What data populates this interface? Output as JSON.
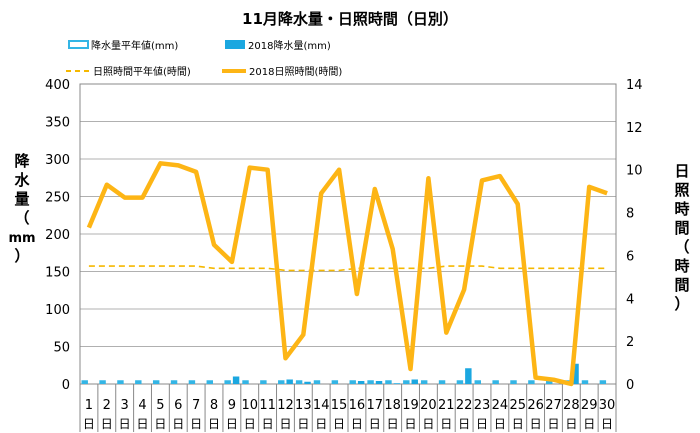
{
  "chart_data": {
    "type": "bar+line",
    "title": "11月降水量・日照時間（日別）",
    "y_left_label": [
      "降",
      "水",
      "量",
      "（",
      "mm",
      "）"
    ],
    "y_right_label": [
      "日",
      "照",
      "時",
      "間",
      "（",
      "時",
      "間",
      "）"
    ],
    "y_left_range": [
      0,
      400
    ],
    "y_left_ticks": [
      "0",
      "50",
      "100",
      "150",
      "200",
      "250",
      "300",
      "350",
      "400"
    ],
    "y_right_range": [
      0,
      14
    ],
    "y_right_ticks": [
      "0",
      "2",
      "4",
      "6",
      "8",
      "10",
      "12",
      "14"
    ],
    "grid": true,
    "legend_position": "top",
    "categories": [
      "1",
      "2",
      "3",
      "4",
      "5",
      "6",
      "7",
      "8",
      "9",
      "10",
      "11",
      "12",
      "13",
      "14",
      "15",
      "16",
      "17",
      "18",
      "19",
      "20",
      "21",
      "22",
      "23",
      "24",
      "25",
      "26",
      "27",
      "28",
      "29",
      "30"
    ],
    "day_suffix": "日",
    "legend": {
      "rain_normal": "降水量平年値(mm)",
      "rain_2018": "2018降水量(mm)",
      "sun_normal": "日照時間平年値(時間)",
      "sun_2018": "2018日照時間(時間)"
    },
    "series": [
      {
        "name": "降水量平年値(mm)",
        "axis": "left",
        "kind": "bar",
        "color": "#33B5E5",
        "values": [
          5,
          5,
          5,
          5,
          5,
          5,
          5,
          5,
          5,
          5,
          5,
          5,
          5,
          5,
          5,
          5,
          5,
          5,
          5,
          5,
          5,
          5,
          5,
          5,
          5,
          5,
          5,
          5,
          5,
          5
        ]
      },
      {
        "name": "2018降水量(mm)",
        "axis": "left",
        "kind": "bar",
        "color": "#1BA7E0",
        "values": [
          0,
          0,
          0,
          0,
          0,
          0,
          0,
          0,
          10,
          0,
          0,
          6,
          3,
          0,
          0,
          4,
          4,
          1,
          6,
          0,
          0,
          21,
          0,
          0,
          0,
          0,
          0,
          27,
          0,
          0
        ]
      },
      {
        "name": "日照時間平年値(時間)",
        "axis": "right",
        "kind": "line",
        "style": "dashed",
        "color": "#F5B800",
        "values": [
          5.5,
          5.5,
          5.5,
          5.5,
          5.5,
          5.5,
          5.5,
          5.4,
          5.4,
          5.4,
          5.4,
          5.3,
          5.3,
          5.3,
          5.3,
          5.4,
          5.4,
          5.4,
          5.4,
          5.4,
          5.5,
          5.5,
          5.5,
          5.4,
          5.4,
          5.4,
          5.4,
          5.4,
          5.4,
          5.4
        ]
      },
      {
        "name": "2018日照時間(時間)",
        "axis": "right",
        "kind": "line",
        "style": "solid",
        "color": "#FDB515",
        "values": [
          7.3,
          9.3,
          8.7,
          8.7,
          10.3,
          10.2,
          9.9,
          6.5,
          5.7,
          10.1,
          10.0,
          1.2,
          2.3,
          8.9,
          10.0,
          4.2,
          9.1,
          6.3,
          0.7,
          9.6,
          2.4,
          4.4,
          9.5,
          9.7,
          8.4,
          0.3,
          0.2,
          0.0,
          9.2,
          8.9
        ]
      }
    ]
  }
}
